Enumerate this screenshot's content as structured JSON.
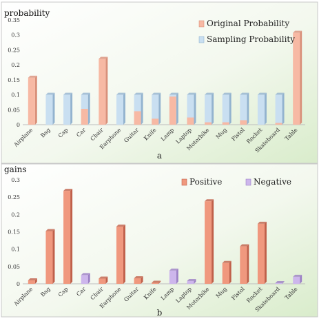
{
  "colors": {
    "original": "#f7b9a4",
    "original_side": "#d9907a",
    "sampling": "#c9dff1",
    "sampling_side": "#93b3cf",
    "positive": "#f0987e",
    "positive_side": "#c0604a",
    "negative": "#cdb6ec",
    "negative_side": "#9c80c6"
  },
  "chart_data": [
    {
      "type": "bar",
      "ylabel": "probability",
      "caption": "a",
      "categories": [
        "Airplane",
        "Bag",
        "Cap",
        "Car",
        "Chair",
        "Earphone",
        "Guitar",
        "Knife",
        "Lamp",
        "Laptop",
        "Motorbike",
        "Mug",
        "Pistol",
        "Rocket",
        "Skateboard",
        "Table"
      ],
      "ylim": [
        0,
        0.35
      ],
      "yticks": [
        "0",
        "0.05",
        "0.1",
        "0.15",
        "0.2",
        "0.25",
        "0.3",
        "0.35"
      ],
      "legend_position": "top-right",
      "series": [
        {
          "name": "Original Probability",
          "values": [
            0.157,
            0.0,
            0.0,
            0.053,
            0.22,
            0.0,
            0.045,
            0.02,
            0.094,
            0.024,
            0.008,
            0.008,
            0.015,
            0.0,
            0.006,
            0.307
          ]
        },
        {
          "name": "Sampling Probability",
          "values": [
            0.157,
            0.1,
            0.1,
            0.1,
            0.22,
            0.1,
            0.1,
            0.1,
            0.1,
            0.1,
            0.1,
            0.1,
            0.1,
            0.1,
            0.1,
            0.307
          ]
        }
      ]
    },
    {
      "type": "bar",
      "ylabel": "gains",
      "caption": "b",
      "categories": [
        "Airplane",
        "Bag",
        "Cap",
        "Car",
        "Chair",
        "Earphone",
        "Guitar",
        "Knife",
        "Lamp",
        "Laptop",
        "Motorbike",
        "Mug",
        "Pistol",
        "Rocket",
        "Skateboard",
        "Table"
      ],
      "ylim": [
        0,
        0.3
      ],
      "yticks": [
        "0",
        "0.05",
        "0.1",
        "0.15",
        "0.2",
        "0.25",
        "0.3"
      ],
      "legend_position": "top-right",
      "series": [
        {
          "name": "Positive",
          "values": [
            0.01,
            0.152,
            0.268,
            null,
            0.015,
            0.165,
            0.016,
            0.003,
            null,
            null,
            0.238,
            0.06,
            0.108,
            0.173,
            null,
            null
          ]
        },
        {
          "name": "Negative",
          "values": [
            null,
            null,
            null,
            0.025,
            null,
            null,
            null,
            null,
            0.038,
            0.008,
            null,
            null,
            null,
            null,
            0.002,
            0.02
          ]
        }
      ]
    }
  ]
}
